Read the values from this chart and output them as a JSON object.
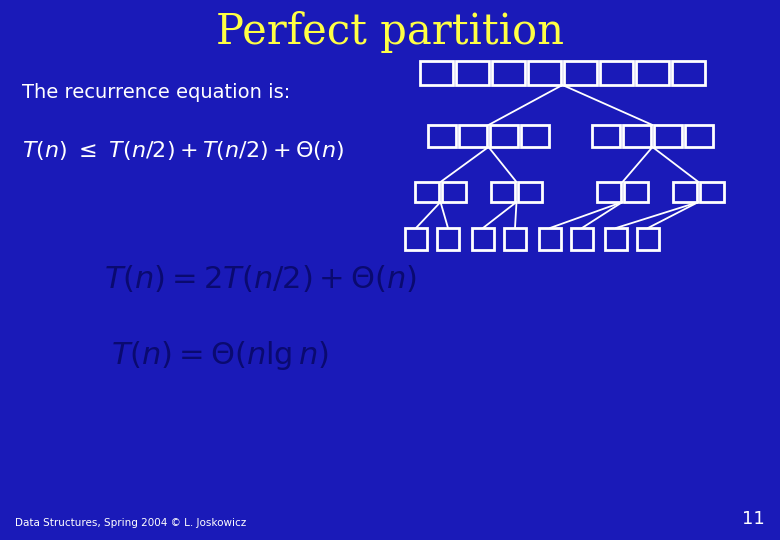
{
  "title": "Perfect partition",
  "title_color": "#FFFF44",
  "title_fontsize": 30,
  "bg_color": "#1a1ab8",
  "text_color": "#ffffff",
  "text1": "The recurrence equation is:",
  "formula_dark_color": "#0a0a70",
  "footer": "Data Structures, Spring 2004 © L. Joskowicz",
  "page_num": "11",
  "box_color": "#ffffff",
  "line_color": "#ffffff"
}
